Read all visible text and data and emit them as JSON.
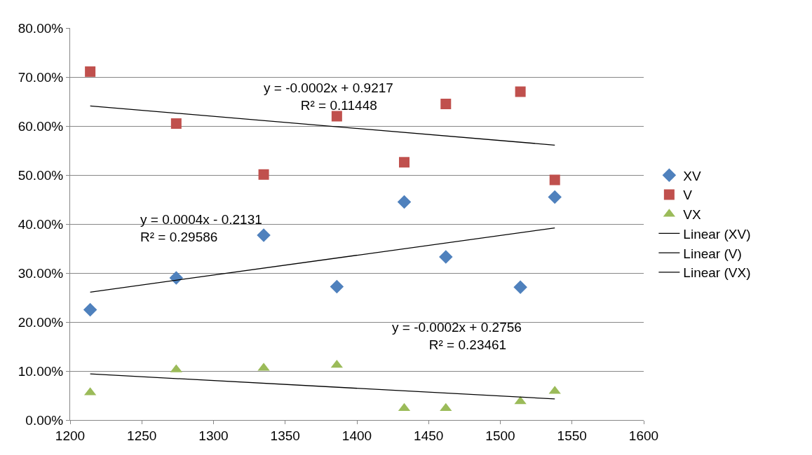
{
  "chart_data": {
    "type": "scatter",
    "grid": "y",
    "legend": "right",
    "xlim": [
      1200,
      1600
    ],
    "xticks": [
      1200,
      1250,
      1300,
      1350,
      1400,
      1450,
      1500,
      1550,
      1600
    ],
    "ylim": [
      0,
      80
    ],
    "yticks": [
      {
        "value": 0,
        "label": "0.00%"
      },
      {
        "value": 10,
        "label": "10.00%"
      },
      {
        "value": 20,
        "label": "20.00%"
      },
      {
        "value": 30,
        "label": "30.00%"
      },
      {
        "value": 40,
        "label": "40.00%"
      },
      {
        "value": 50,
        "label": "50.00%"
      },
      {
        "value": 60,
        "label": "60.00%"
      },
      {
        "value": 70,
        "label": "70.00%"
      },
      {
        "value": 80,
        "label": "80.00%"
      }
    ],
    "series": [
      {
        "name": "XV",
        "color": "#4f81bd",
        "marker": "diamond",
        "x": [
          1214,
          1274,
          1335,
          1386,
          1433,
          1462,
          1514,
          1538
        ],
        "values": [
          22.5,
          29.0,
          37.7,
          27.2,
          44.5,
          33.3,
          27.1,
          45.5
        ]
      },
      {
        "name": "V",
        "color": "#c0504d",
        "marker": "square",
        "x": [
          1214,
          1274,
          1335,
          1386,
          1433,
          1462,
          1514,
          1538
        ],
        "values": [
          71.1,
          60.5,
          50.1,
          62.0,
          52.6,
          64.5,
          67.0,
          49.0
        ]
      },
      {
        "name": "VX",
        "color": "#9bbb59",
        "marker": "triangle",
        "x": [
          1214,
          1274,
          1335,
          1386,
          1433,
          1462,
          1514,
          1538
        ],
        "values": [
          5.6,
          10.3,
          10.6,
          11.2,
          2.4,
          2.4,
          3.8,
          5.9
        ]
      },
      {
        "name": "Linear (XV)",
        "type": "line",
        "color": "#000000",
        "marker": "none",
        "x": [
          1214,
          1538
        ],
        "values": [
          26.1,
          39.2
        ]
      },
      {
        "name": "Linear (V)",
        "type": "line",
        "color": "#000000",
        "marker": "none",
        "x": [
          1214,
          1538
        ],
        "values": [
          64.1,
          56.1
        ]
      },
      {
        "name": "Linear (VX)",
        "type": "line",
        "color": "#000000",
        "marker": "none",
        "x": [
          1214,
          1538
        ],
        "values": [
          9.4,
          4.3
        ]
      }
    ],
    "annotations": [
      "y = -0.0002x + 0.9217\n          R² = 0.11448",
      "y = 0.0004x - 0.2131\nR² = 0.29586",
      "y = -0.0002x + 0.2756\n          R² = 0.23461"
    ]
  }
}
